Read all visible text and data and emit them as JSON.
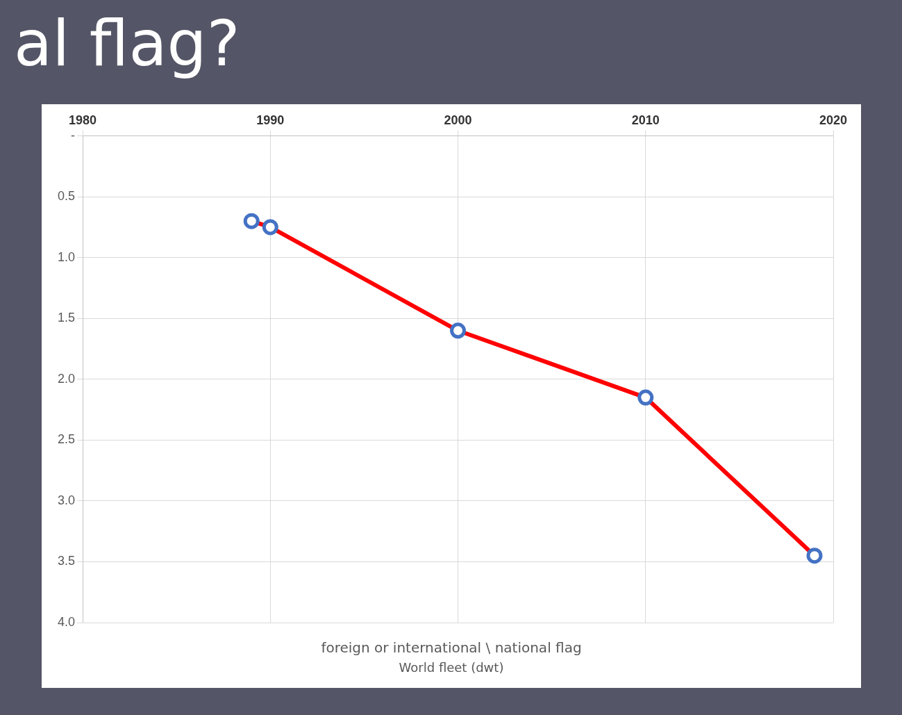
{
  "chart_data": {
    "type": "line",
    "title": "al flag?",
    "xlabel": "foreign or international \\ national flag",
    "annotations": [
      "World fleet (dwt)"
    ],
    "x": [
      1989,
      1990,
      2000,
      2010,
      2019
    ],
    "series": [
      {
        "color": "#ff0000",
        "values": [
          0.7,
          0.75,
          1.6,
          2.15,
          3.45
        ]
      }
    ],
    "xlim": [
      1980,
      2020
    ],
    "xticks": [
      1980,
      1990,
      2000,
      2010,
      2020
    ],
    "ylim": [
      4,
      0
    ],
    "yticks": [
      {
        "value": 0,
        "label": "-"
      },
      {
        "value": 0.5,
        "label": "0.5"
      },
      {
        "value": 1,
        "label": "1.0"
      },
      {
        "value": 1.5,
        "label": "1.5"
      },
      {
        "value": 2,
        "label": "2.0"
      },
      {
        "value": 2.5,
        "label": "2.5"
      },
      {
        "value": 3,
        "label": "3.0"
      },
      {
        "value": 3.5,
        "label": "3.5"
      },
      {
        "value": 4,
        "label": "4.0"
      }
    ],
    "grid": true,
    "legend": false,
    "marker": "circle",
    "line_style": "solid"
  }
}
